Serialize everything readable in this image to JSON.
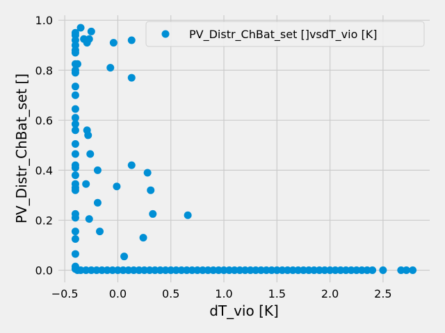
{
  "chart_data": {
    "type": "scatter",
    "xlabel": "dT_vio [K]",
    "ylabel": "PV_Distr_ChBat_set []",
    "xlim": [
      -0.56,
      2.94
    ],
    "ylim": [
      -0.0486,
      1.02
    ],
    "xticks": [
      {
        "value": -0.5,
        "label": "−0.5"
      },
      {
        "value": 0,
        "label": "0.0"
      },
      0.5,
      {
        "value": 1,
        "label": "1.0"
      },
      1.5,
      {
        "value": 2,
        "label": "2.0"
      },
      2.5
    ],
    "yticks": [
      {
        "value": 0,
        "label": "0.0"
      },
      0.2,
      0.4,
      0.6,
      0.8,
      {
        "value": 1,
        "label": "1.0"
      }
    ],
    "grid": true,
    "legend": "upper right",
    "x": [
      -0.4,
      -0.4,
      -0.4,
      -0.4,
      -0.4,
      -0.4,
      -0.4,
      -0.4,
      -0.4,
      -0.4,
      -0.4,
      -0.4,
      -0.4,
      -0.4,
      -0.4,
      -0.4,
      -0.4,
      -0.4,
      -0.4,
      -0.4,
      -0.4,
      -0.4,
      -0.4,
      -0.4,
      -0.4,
      -0.4,
      -0.4,
      -0.4,
      -0.4,
      -0.4,
      -0.38,
      -0.35,
      -0.32,
      -0.29,
      -0.27,
      -0.25,
      -0.07,
      -0.04,
      0.13,
      0.13,
      -0.29,
      -0.28,
      -0.26,
      -0.19,
      0.13,
      0.28,
      0.31,
      -0.3,
      -0.01,
      -0.19,
      0.33,
      0.66,
      -0.27,
      -0.17,
      0.24,
      0.06,
      -0.38,
      -0.35,
      -0.3,
      -0.25,
      -0.2,
      -0.15,
      -0.1,
      -0.05,
      0,
      0.05,
      0.1,
      0.15,
      0.2,
      0.25,
      0.3,
      0.35,
      0.4,
      0.45,
      0.5,
      0.55,
      0.6,
      0.65,
      0.7,
      0.75,
      0.8,
      0.85,
      0.9,
      0.95,
      1,
      1.05,
      1.1,
      1.15,
      1.2,
      1.25,
      1.3,
      1.35,
      1.4,
      1.45,
      1.5,
      1.55,
      1.6,
      1.65,
      1.7,
      1.75,
      1.8,
      1.85,
      1.9,
      1.95,
      2,
      2.05,
      2.1,
      2.15,
      2.2,
      2.25,
      2.3,
      2.35,
      2.4,
      2.5,
      2.67,
      2.72,
      2.78
    ],
    "series": [
      {
        "name": "PV_Distr_ChBat_set []vsdT_vio [K]",
        "color": "#008fd5",
        "values": [
          0.95,
          0.94,
          0.92,
          0.9,
          0.88,
          0.87,
          0.825,
          0.8,
          0.79,
          0.735,
          0.7,
          0.645,
          0.61,
          0.585,
          0.56,
          0.505,
          0.465,
          0.42,
          0.41,
          0.38,
          0.345,
          0.33,
          0.32,
          0.225,
          0.21,
          0.155,
          0.125,
          0.065,
          0.015,
          0.005,
          0.825,
          0.97,
          0.925,
          0.91,
          0.925,
          0.955,
          0.81,
          0.91,
          0.92,
          0.77,
          0.56,
          0.54,
          0.465,
          0.4,
          0.42,
          0.39,
          0.32,
          0.345,
          0.335,
          0.27,
          0.225,
          0.22,
          0.205,
          0.155,
          0.13,
          0.055,
          0,
          0,
          0,
          0,
          0,
          0,
          0,
          0,
          0,
          0,
          0,
          0,
          0,
          0,
          0,
          0,
          0,
          0,
          0,
          0,
          0,
          0,
          0,
          0,
          0,
          0,
          0,
          0,
          0,
          0,
          0,
          0,
          0,
          0,
          0,
          0,
          0,
          0,
          0,
          0,
          0,
          0,
          0,
          0,
          0,
          0,
          0,
          0,
          0,
          0,
          0,
          0,
          0,
          0,
          0,
          0,
          0,
          0,
          0,
          0,
          0
        ]
      }
    ]
  }
}
